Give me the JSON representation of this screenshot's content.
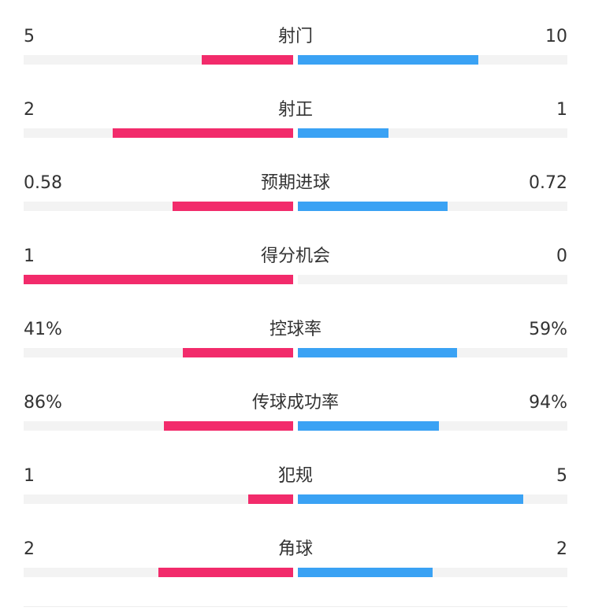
{
  "colors": {
    "home": "#f22b6b",
    "away": "#3aa2f4",
    "track": "#f3f3f3",
    "text": "#333333"
  },
  "stats": [
    {
      "label": "射门",
      "left": "5",
      "right": "10",
      "left_fill": 0.34,
      "right_fill": 0.67
    },
    {
      "label": "射正",
      "left": "2",
      "right": "1",
      "left_fill": 0.67,
      "right_fill": 0.335
    },
    {
      "label": "预期进球",
      "left": "0.58",
      "right": "0.72",
      "left_fill": 0.448,
      "right_fill": 0.556
    },
    {
      "label": "得分机会",
      "left": "1",
      "right": "0",
      "left_fill": 1.0,
      "right_fill": 0.0
    },
    {
      "label": "控球率",
      "left": "41%",
      "right": "59%",
      "left_fill": 0.41,
      "right_fill": 0.59
    },
    {
      "label": "传球成功率",
      "left": "86%",
      "right": "94%",
      "left_fill": 0.48,
      "right_fill": 0.524
    },
    {
      "label": "犯规",
      "left": "1",
      "right": "5",
      "left_fill": 0.167,
      "right_fill": 0.835
    },
    {
      "label": "角球",
      "left": "2",
      "right": "2",
      "left_fill": 0.5,
      "right_fill": 0.5
    }
  ]
}
